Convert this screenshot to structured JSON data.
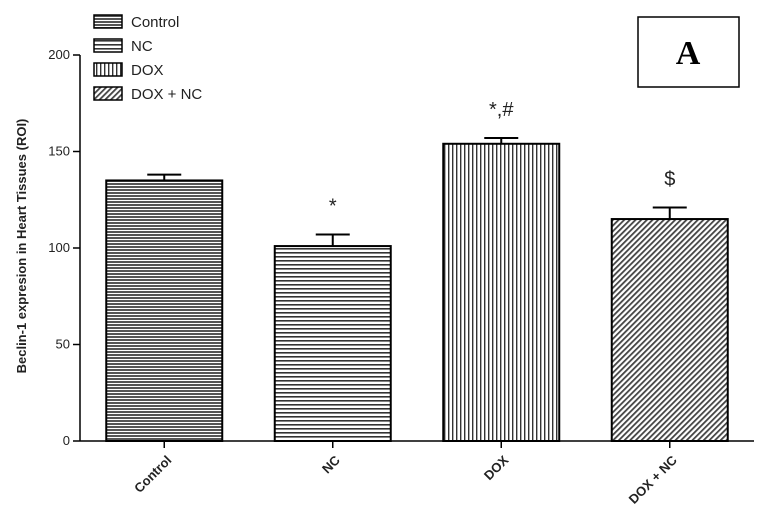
{
  "chart_data": {
    "type": "bar",
    "ylabel": "Beclin-1 expresion in Heart Tissues (ROI)",
    "xlabel": "",
    "ylim": [
      0,
      200
    ],
    "yticks": [
      0,
      50,
      100,
      150,
      200
    ],
    "categories": [
      "Control",
      "NC",
      "DOX",
      "DOX + NC"
    ],
    "values": [
      135,
      101,
      154,
      115
    ],
    "errors": [
      3,
      6,
      3,
      6
    ],
    "annotations": [
      "",
      "*",
      "*,#",
      "$"
    ],
    "patterns": [
      "dense-horizontal",
      "horizontal",
      "vertical",
      "diagonal"
    ],
    "legend": {
      "position": "top-left",
      "entries": [
        "Control",
        "NC",
        "DOX",
        "DOX + NC"
      ]
    },
    "panel_label": "A",
    "grid": false
  }
}
